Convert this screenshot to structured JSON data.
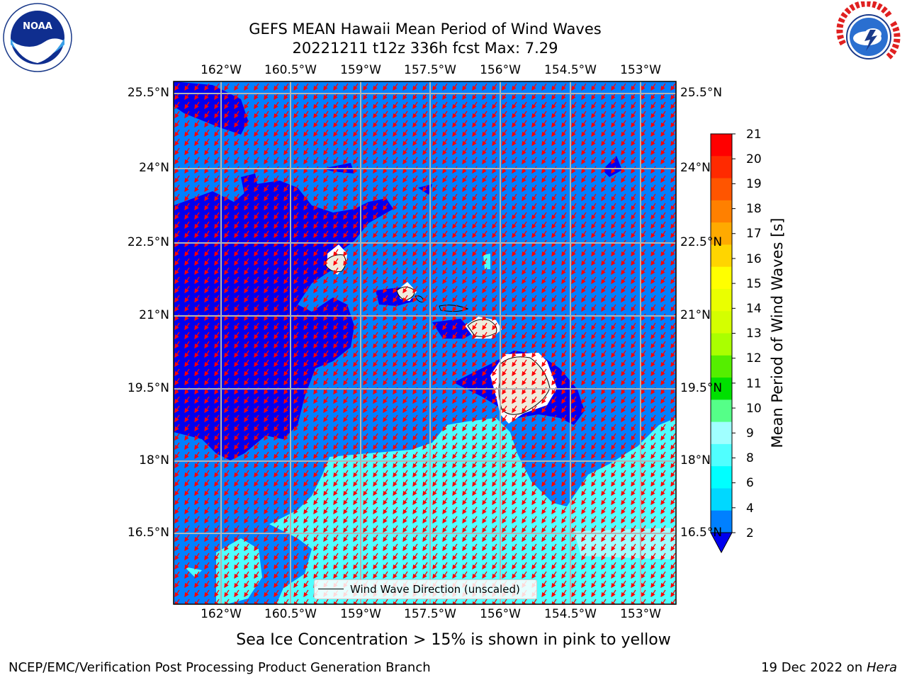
{
  "header": {
    "title_line1": "GEFS MEAN Hawaii Mean Period of Wind Waves",
    "title_line2": "20221211 t12z 336h fcst   Max: 7.29"
  },
  "logos": {
    "left": "NOAA",
    "right": "NATIONAL WEATHER SERVICE"
  },
  "map": {
    "lon_labels": [
      "162°W",
      "160.5°W",
      "159°W",
      "157.5°W",
      "156°W",
      "154.5°W",
      "153°W"
    ],
    "lat_labels_left": [
      "25.5°N",
      "24°N",
      "22.5°N",
      "21°N",
      "19.5°N",
      "18°N",
      "16.5°N"
    ],
    "lat_labels_right": [
      "25.5°N",
      "24°N",
      "22.5°N",
      "21°N",
      "19.5°N",
      "18°N",
      "16.5°N"
    ],
    "legend": "Wind Wave Direction (unscaled)",
    "arrow_color": "#ff0000",
    "land_color": "#efecdc"
  },
  "colorbar": {
    "label": "Mean Period of Wind Waves [s]",
    "ticks": [
      "21",
      "20",
      "19",
      "18",
      "17",
      "16",
      "15",
      "14",
      "13",
      "12",
      "11",
      "10",
      "9",
      "8",
      "6",
      "4",
      "2"
    ],
    "colors_top_to_bottom": [
      "#ff0000",
      "#ff2a00",
      "#ff5500",
      "#ff8000",
      "#ffaa00",
      "#ffd500",
      "#ffff00",
      "#eaff00",
      "#d4ff00",
      "#aaff00",
      "#55ee00",
      "#00e000",
      "#55ff88",
      "#a0ffff",
      "#50ffff",
      "#00ffff",
      "#00d8ff",
      "#0080ff"
    ],
    "extend_color": "#0000ee"
  },
  "sea_ice_note": "Sea Ice Concentration > 15% is shown in pink to yellow",
  "footer": {
    "left": "NCEP/EMC/Verification Post Processing Product Generation Branch",
    "right_prefix": "19 Dec 2022 on ",
    "right_machine": "Hera"
  }
}
